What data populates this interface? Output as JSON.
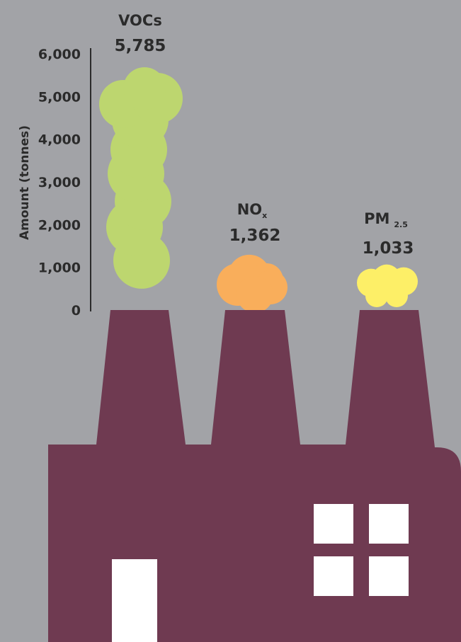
{
  "chart_data": {
    "type": "bar",
    "ylabel": "Amount (tonnes)",
    "ylim": [
      0,
      6000
    ],
    "yticks": [
      0,
      1000,
      2000,
      3000,
      4000,
      5000,
      6000
    ],
    "ytick_labels": [
      "0",
      "1,000",
      "2,000",
      "3,000",
      "4,000",
      "5,000",
      "6,000"
    ],
    "bars": [
      {
        "label": "VOCs",
        "subscript": "",
        "value": 5785,
        "value_label": "5,785",
        "color": "#bdd66f"
      },
      {
        "label": "NO",
        "subscript": "x",
        "value": 1362,
        "value_label": "1,362",
        "color": "#f9ae5b"
      },
      {
        "label": "PM",
        "subscript": "2.5",
        "value": 1033,
        "value_label": "1,033",
        "color": "#fdef67"
      }
    ]
  },
  "colors": {
    "background": "#a2a3a7",
    "factory": "#6f3a51",
    "window": "#ffffff",
    "axis": "#2b2b2b"
  }
}
